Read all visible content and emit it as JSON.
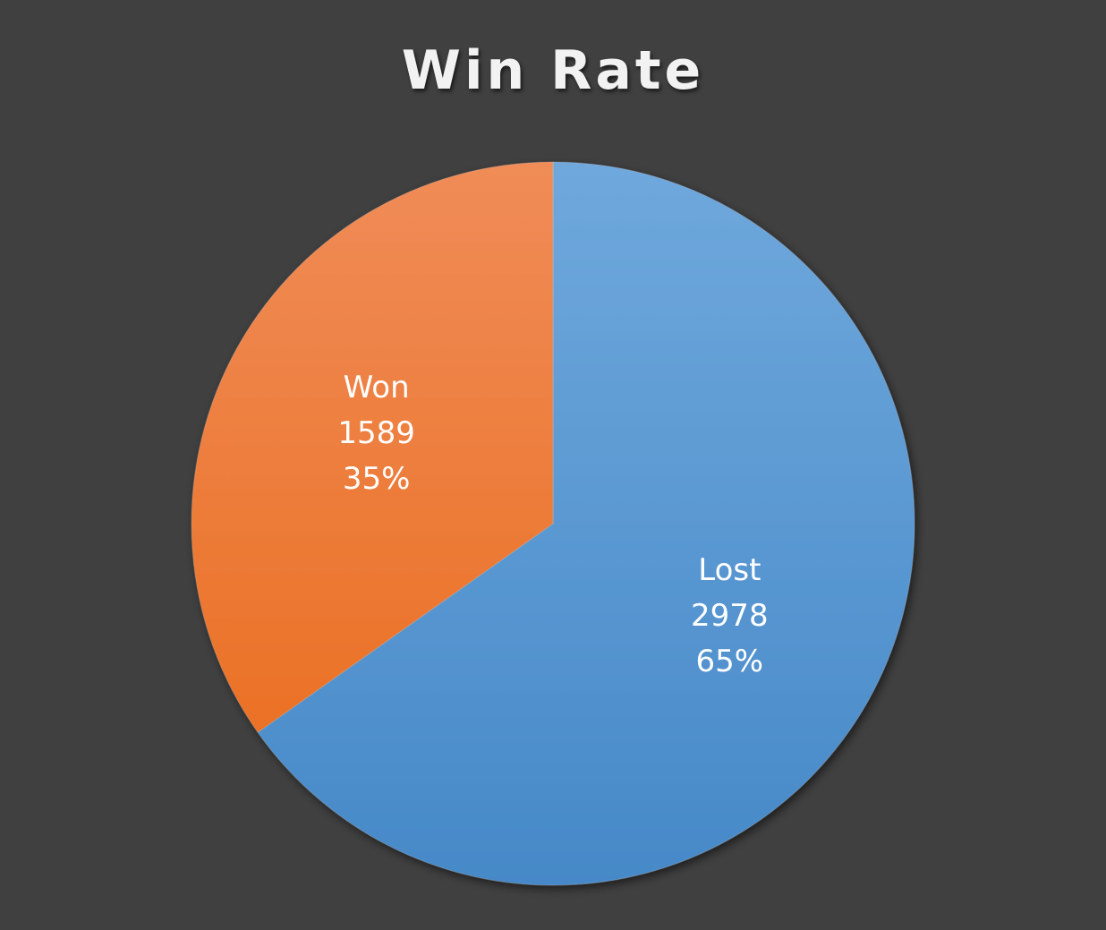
{
  "chart_data": {
    "type": "pie",
    "title": "Win Rate",
    "categories": [
      "Lost",
      "Won"
    ],
    "values": [
      2978,
      1589
    ],
    "percent_labels": [
      "65%",
      "35%"
    ],
    "colors": {
      "Lost": {
        "top": "#6fa8dc",
        "bottom": "#4689c8"
      },
      "Won": {
        "top": "#f08c58",
        "bottom": "#e96a18"
      }
    },
    "start_angle_deg": 0,
    "direction": "clockwise",
    "legend": "none",
    "data_labels": "category, value, percent"
  }
}
